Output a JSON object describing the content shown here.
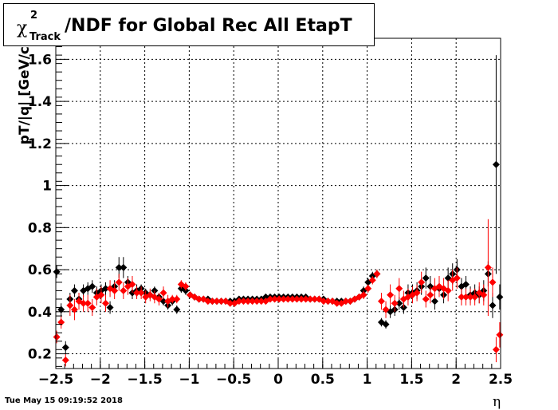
{
  "title": {
    "symbol": "χ",
    "superscript": "2",
    "subscript": "Track",
    "text": "/NDF for Global Rec All EtapT"
  },
  "timestamp": "Tue May 15 09:19:52 2018",
  "chart_data": {
    "type": "scatter",
    "title": "χ²_Track/NDF for Global Rec All EtapT",
    "xlabel": "η",
    "ylabel": "pT/|q| [GeV/c",
    "xlim": [
      -2.5,
      2.5
    ],
    "ylim": [
      0.13,
      1.7
    ],
    "xticks": [
      -2.5,
      -2,
      -1.5,
      -1,
      -0.5,
      0,
      0.5,
      1,
      1.5,
      2,
      2.5
    ],
    "xtick_labels": [
      "−2.5",
      "−2",
      "−1.5",
      "−1",
      "−0.5",
      "0",
      "0.5",
      "1",
      "1.5",
      "2",
      "2.5"
    ],
    "yticks": [
      0.2,
      0.4,
      0.6,
      0.8,
      1,
      1.2,
      1.4,
      1.6
    ],
    "ytick_labels": [
      "0.2",
      "0.4",
      "0.6",
      "0.8",
      "1",
      "1.2",
      "1.4",
      "1.6"
    ],
    "grid": true,
    "series": [
      {
        "color": "#000000",
        "marker": "diamond",
        "points": [
          [
            -2.49,
            0.59,
            0.03
          ],
          [
            -2.44,
            0.41,
            0.03
          ],
          [
            -2.39,
            0.23,
            0.03
          ],
          [
            -2.34,
            0.46,
            0.03
          ],
          [
            -2.29,
            0.5,
            0.03
          ],
          [
            -2.24,
            0.46,
            0.03
          ],
          [
            -2.19,
            0.5,
            0.03
          ],
          [
            -2.14,
            0.51,
            0.03
          ],
          [
            -2.09,
            0.52,
            0.03
          ],
          [
            -2.04,
            0.49,
            0.03
          ],
          [
            -1.99,
            0.5,
            0.03
          ],
          [
            -1.94,
            0.51,
            0.03
          ],
          [
            -1.89,
            0.42,
            0.03
          ],
          [
            -1.84,
            0.52,
            0.03
          ],
          [
            -1.79,
            0.61,
            0.05
          ],
          [
            -1.74,
            0.61,
            0.05
          ],
          [
            -1.69,
            0.54,
            0.03
          ],
          [
            -1.64,
            0.49,
            0.03
          ],
          [
            -1.59,
            0.5,
            0.03
          ],
          [
            -1.54,
            0.51,
            0.02
          ],
          [
            -1.49,
            0.49,
            0.02
          ],
          [
            -1.44,
            0.48,
            0.02
          ],
          [
            -1.39,
            0.5,
            0.02
          ],
          [
            -1.34,
            0.47,
            0.02
          ],
          [
            -1.29,
            0.45,
            0.02
          ],
          [
            -1.24,
            0.43,
            0.02
          ],
          [
            -1.19,
            0.45,
            0.02
          ],
          [
            -1.14,
            0.41,
            0.02
          ],
          [
            -1.09,
            0.51,
            0.02
          ],
          [
            -1.04,
            0.5,
            0.02
          ],
          [
            -0.99,
            0.48,
            0.01
          ],
          [
            -0.94,
            0.47,
            0.01
          ],
          [
            -0.89,
            0.46,
            0.01
          ],
          [
            -0.84,
            0.46,
            0.01
          ],
          [
            -0.79,
            0.46,
            0.01
          ],
          [
            -0.74,
            0.45,
            0.01
          ],
          [
            -0.69,
            0.45,
            0.01
          ],
          [
            -0.64,
            0.45,
            0.01
          ],
          [
            -0.59,
            0.45,
            0.01
          ],
          [
            -0.54,
            0.45,
            0.01
          ],
          [
            -0.49,
            0.45,
            0.01
          ],
          [
            -0.44,
            0.46,
            0.01
          ],
          [
            -0.39,
            0.46,
            0.01
          ],
          [
            -0.34,
            0.46,
            0.01
          ],
          [
            -0.29,
            0.46,
            0.01
          ],
          [
            -0.24,
            0.46,
            0.01
          ],
          [
            -0.19,
            0.46,
            0.01
          ],
          [
            -0.14,
            0.47,
            0.01
          ],
          [
            -0.09,
            0.47,
            0.01
          ],
          [
            -0.04,
            0.47,
            0.01
          ],
          [
            0.01,
            0.47,
            0.01
          ],
          [
            0.06,
            0.47,
            0.01
          ],
          [
            0.11,
            0.47,
            0.01
          ],
          [
            0.16,
            0.47,
            0.01
          ],
          [
            0.21,
            0.47,
            0.01
          ],
          [
            0.26,
            0.47,
            0.01
          ],
          [
            0.31,
            0.47,
            0.01
          ],
          [
            0.36,
            0.46,
            0.01
          ],
          [
            0.41,
            0.46,
            0.01
          ],
          [
            0.46,
            0.46,
            0.01
          ],
          [
            0.51,
            0.46,
            0.01
          ],
          [
            0.56,
            0.45,
            0.01
          ],
          [
            0.61,
            0.45,
            0.01
          ],
          [
            0.66,
            0.45,
            0.01
          ],
          [
            0.71,
            0.45,
            0.01
          ],
          [
            0.76,
            0.45,
            0.01
          ],
          [
            0.81,
            0.45,
            0.01
          ],
          [
            0.86,
            0.46,
            0.01
          ],
          [
            0.91,
            0.47,
            0.01
          ],
          [
            0.96,
            0.5,
            0.02
          ],
          [
            1.01,
            0.54,
            0.02
          ],
          [
            1.06,
            0.57,
            0.02
          ],
          [
            1.11,
            0.58,
            0.02
          ],
          [
            1.16,
            0.35,
            0.02
          ],
          [
            1.21,
            0.34,
            0.02
          ],
          [
            1.26,
            0.4,
            0.03
          ],
          [
            1.31,
            0.41,
            0.03
          ],
          [
            1.36,
            0.44,
            0.03
          ],
          [
            1.41,
            0.42,
            0.03
          ],
          [
            1.46,
            0.49,
            0.04
          ],
          [
            1.51,
            0.49,
            0.04
          ],
          [
            1.56,
            0.5,
            0.04
          ],
          [
            1.61,
            0.52,
            0.04
          ],
          [
            1.66,
            0.56,
            0.05
          ],
          [
            1.71,
            0.52,
            0.05
          ],
          [
            1.76,
            0.45,
            0.04
          ],
          [
            1.81,
            0.51,
            0.04
          ],
          [
            1.86,
            0.48,
            0.04
          ],
          [
            1.91,
            0.56,
            0.05
          ],
          [
            1.96,
            0.58,
            0.05
          ],
          [
            2.01,
            0.6,
            0.05
          ],
          [
            2.06,
            0.52,
            0.04
          ],
          [
            2.11,
            0.53,
            0.04
          ],
          [
            2.16,
            0.48,
            0.04
          ],
          [
            2.21,
            0.49,
            0.04
          ],
          [
            2.26,
            0.48,
            0.04
          ],
          [
            2.31,
            0.5,
            0.05
          ],
          [
            2.36,
            0.58,
            0.06
          ],
          [
            2.41,
            0.43,
            0.06
          ],
          [
            2.45,
            1.1,
            0.52
          ],
          [
            2.49,
            0.47,
            0.06
          ]
        ]
      },
      {
        "color": "#ff0000",
        "marker": "diamond",
        "points": [
          [
            -2.49,
            0.28,
            0.03
          ],
          [
            -2.44,
            0.35,
            0.03
          ],
          [
            -2.39,
            0.17,
            0.03
          ],
          [
            -2.34,
            0.43,
            0.05
          ],
          [
            -2.29,
            0.41,
            0.05
          ],
          [
            -2.24,
            0.45,
            0.04
          ],
          [
            -2.19,
            0.44,
            0.04
          ],
          [
            -2.14,
            0.44,
            0.04
          ],
          [
            -2.09,
            0.42,
            0.04
          ],
          [
            -2.04,
            0.47,
            0.04
          ],
          [
            -1.99,
            0.48,
            0.04
          ],
          [
            -1.94,
            0.44,
            0.04
          ],
          [
            -1.89,
            0.51,
            0.04
          ],
          [
            -1.84,
            0.5,
            0.04
          ],
          [
            -1.79,
            0.54,
            0.04
          ],
          [
            -1.74,
            0.5,
            0.04
          ],
          [
            -1.69,
            0.52,
            0.04
          ],
          [
            -1.64,
            0.53,
            0.04
          ],
          [
            -1.59,
            0.49,
            0.03
          ],
          [
            -1.54,
            0.49,
            0.03
          ],
          [
            -1.49,
            0.47,
            0.03
          ],
          [
            -1.44,
            0.48,
            0.03
          ],
          [
            -1.39,
            0.47,
            0.03
          ],
          [
            -1.34,
            0.46,
            0.03
          ],
          [
            -1.29,
            0.49,
            0.03
          ],
          [
            -1.24,
            0.45,
            0.03
          ],
          [
            -1.19,
            0.46,
            0.02
          ],
          [
            -1.14,
            0.46,
            0.02
          ],
          [
            -1.09,
            0.53,
            0.02
          ],
          [
            -1.04,
            0.52,
            0.02
          ],
          [
            -0.99,
            0.48,
            0.01
          ],
          [
            -0.94,
            0.47,
            0.01
          ],
          [
            -0.89,
            0.46,
            0.01
          ],
          [
            -0.84,
            0.46,
            0.01
          ],
          [
            -0.79,
            0.45,
            0.01
          ],
          [
            -0.74,
            0.45,
            0.01
          ],
          [
            -0.69,
            0.45,
            0.01
          ],
          [
            -0.64,
            0.45,
            0.01
          ],
          [
            -0.59,
            0.45,
            0.01
          ],
          [
            -0.54,
            0.44,
            0.01
          ],
          [
            -0.49,
            0.44,
            0.01
          ],
          [
            -0.44,
            0.45,
            0.01
          ],
          [
            -0.39,
            0.45,
            0.01
          ],
          [
            -0.34,
            0.45,
            0.01
          ],
          [
            -0.29,
            0.45,
            0.01
          ],
          [
            -0.24,
            0.45,
            0.01
          ],
          [
            -0.19,
            0.45,
            0.01
          ],
          [
            -0.14,
            0.45,
            0.01
          ],
          [
            -0.09,
            0.46,
            0.01
          ],
          [
            -0.04,
            0.46,
            0.01
          ],
          [
            0.01,
            0.46,
            0.01
          ],
          [
            0.06,
            0.46,
            0.01
          ],
          [
            0.11,
            0.46,
            0.01
          ],
          [
            0.16,
            0.46,
            0.01
          ],
          [
            0.21,
            0.46,
            0.01
          ],
          [
            0.26,
            0.46,
            0.01
          ],
          [
            0.31,
            0.46,
            0.01
          ],
          [
            0.36,
            0.46,
            0.01
          ],
          [
            0.41,
            0.46,
            0.01
          ],
          [
            0.46,
            0.46,
            0.01
          ],
          [
            0.51,
            0.45,
            0.01
          ],
          [
            0.56,
            0.45,
            0.01
          ],
          [
            0.61,
            0.45,
            0.01
          ],
          [
            0.66,
            0.44,
            0.01
          ],
          [
            0.71,
            0.44,
            0.01
          ],
          [
            0.76,
            0.45,
            0.01
          ],
          [
            0.81,
            0.45,
            0.01
          ],
          [
            0.86,
            0.46,
            0.01
          ],
          [
            0.91,
            0.47,
            0.01
          ],
          [
            0.96,
            0.48,
            0.02
          ],
          [
            1.01,
            0.51,
            0.02
          ],
          [
            1.06,
            0.55,
            0.02
          ],
          [
            1.11,
            0.58,
            0.02
          ],
          [
            1.16,
            0.45,
            0.04
          ],
          [
            1.21,
            0.41,
            0.04
          ],
          [
            1.26,
            0.48,
            0.05
          ],
          [
            1.31,
            0.44,
            0.04
          ],
          [
            1.36,
            0.51,
            0.05
          ],
          [
            1.41,
            0.46,
            0.04
          ],
          [
            1.46,
            0.47,
            0.04
          ],
          [
            1.51,
            0.48,
            0.04
          ],
          [
            1.56,
            0.49,
            0.04
          ],
          [
            1.61,
            0.54,
            0.05
          ],
          [
            1.66,
            0.46,
            0.04
          ],
          [
            1.71,
            0.48,
            0.04
          ],
          [
            1.76,
            0.51,
            0.05
          ],
          [
            1.81,
            0.52,
            0.05
          ],
          [
            1.86,
            0.51,
            0.05
          ],
          [
            1.91,
            0.5,
            0.05
          ],
          [
            1.96,
            0.55,
            0.05
          ],
          [
            2.01,
            0.56,
            0.05
          ],
          [
            2.06,
            0.47,
            0.04
          ],
          [
            2.11,
            0.47,
            0.04
          ],
          [
            2.16,
            0.47,
            0.04
          ],
          [
            2.21,
            0.47,
            0.04
          ],
          [
            2.26,
            0.49,
            0.05
          ],
          [
            2.31,
            0.48,
            0.05
          ],
          [
            2.36,
            0.61,
            0.23
          ],
          [
            2.41,
            0.54,
            0.07
          ],
          [
            2.45,
            0.22,
            0.06
          ],
          [
            2.49,
            0.29,
            0.06
          ]
        ]
      }
    ]
  }
}
